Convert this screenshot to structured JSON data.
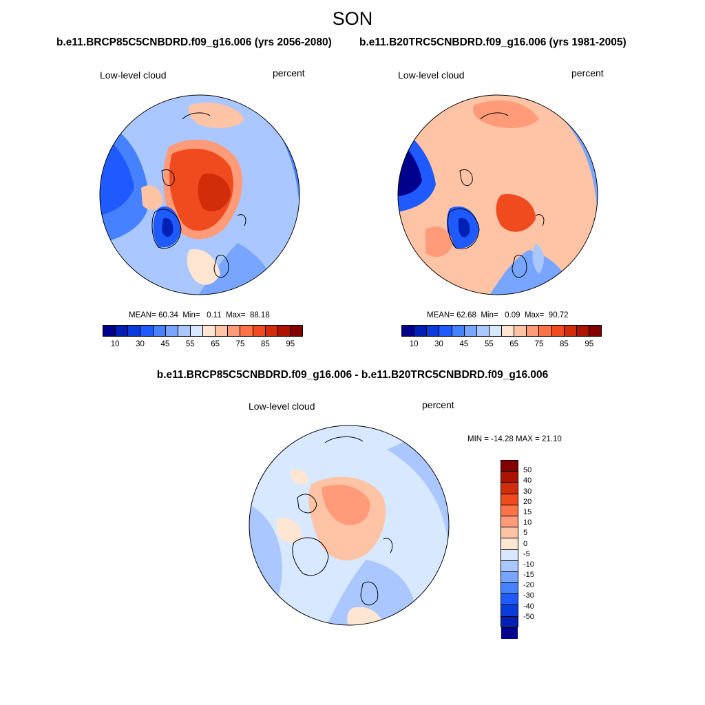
{
  "title": "SON",
  "panels": [
    {
      "run_title": "b.e11.BRCP85C5CNBDRD.f09_g16.006 (yrs 2056-2080)",
      "variable": "Low-level cloud",
      "units": "percent",
      "mean_label": "MEAN=",
      "mean": "60.34",
      "min_label": "Min=",
      "min": "0.11",
      "max_label": "Max=",
      "max": "88.18"
    },
    {
      "run_title": "b.e11.B20TRC5CNBDRD.f09_g16.006 (yrs 1981-2005)",
      "variable": "Low-level cloud",
      "units": "percent",
      "mean_label": "MEAN=",
      "mean": "62.68",
      "min_label": "Min=",
      "min": "0.09",
      "max_label": "Max=",
      "max": "90.72"
    }
  ],
  "diff_panel": {
    "title": "b.e11.BRCP85C5CNBDRD.f09_g16.006 - b.e11.B20TRC5CNBDRD.f09_g16.006",
    "variable": "Low-level cloud",
    "units": "percent",
    "minmax_text": "MIN = -14.28 MAX =  21.10"
  },
  "colorbar_top": {
    "labels": [
      "10",
      "30",
      "45",
      "55",
      "65",
      "75",
      "85",
      "95"
    ],
    "colors": [
      "#00008c",
      "#0020b4",
      "#0a3cdc",
      "#1e5aff",
      "#4682ff",
      "#78a5ff",
      "#aac8ff",
      "#d7e8ff",
      "#ffe6d2",
      "#ffc3a5",
      "#ff9b78",
      "#ff7346",
      "#f04b1e",
      "#d22d0a",
      "#aa1400",
      "#820000"
    ]
  },
  "colorbar_diff": {
    "labels": [
      "50",
      "40",
      "30",
      "20",
      "15",
      "10",
      "5",
      "0",
      "-5",
      "-10",
      "-15",
      "-20",
      "-30",
      "-40",
      "-50"
    ],
    "colors": [
      "#820000",
      "#aa1400",
      "#d22d0a",
      "#f04b1e",
      "#ff7346",
      "#ff9b78",
      "#ffc3a5",
      "#ffe6d2",
      "#d7e8ff",
      "#aac8ff",
      "#78a5ff",
      "#4682ff",
      "#1e5aff",
      "#0a3cdc",
      "#0020b4",
      "#00008c"
    ]
  }
}
